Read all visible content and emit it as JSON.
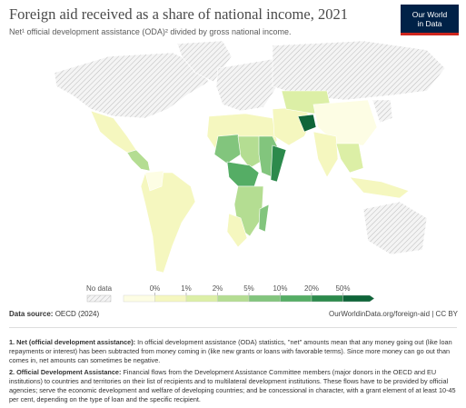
{
  "header": {
    "title": "Foreign aid received as a share of national income, 2021",
    "subtitle": "Net¹ official development assistance (ODA)² divided by gross national income.",
    "logo": [
      "Our World",
      "in Data"
    ]
  },
  "legend": {
    "no_data": "No data",
    "ticks": [
      "0%",
      "1%",
      "2%",
      "5%",
      "10%",
      "20%",
      "50%"
    ],
    "colors": [
      "#fdfde4",
      "#f5f7bf",
      "#dcefa6",
      "#b4dd92",
      "#82c57d",
      "#55ad65",
      "#2c8a4c",
      "#0f6539"
    ]
  },
  "footer": {
    "source_label": "Data source:",
    "source": "OECD (2024)",
    "url": "OurWorldinData.org/foreign-aid | CC BY"
  },
  "notes": [
    {
      "label": "1. Net (official development assistance):",
      "text": "In official development assistance (ODA) statistics, \"net\" amounts mean that any money going out (like loan repayments or interest) has been subtracted from money coming in (like new grants or loans with favorable terms). Since more money can go out than comes in, net amounts can sometimes be negative."
    },
    {
      "label": "2. Official Development Assistance:",
      "text": "Financial flows from the Development Assistance Committee members (major donors in the OECD and EU institutions) to countries and territories on their list of recipients and to multilateral development institutions. These flows have to be provided by official agencies; serve the economic development and welfare of developing countries; and be concessional in character, with a grant element of at least 10-45 per cent, depending on the type of loan and the specific recipient."
    }
  ]
}
